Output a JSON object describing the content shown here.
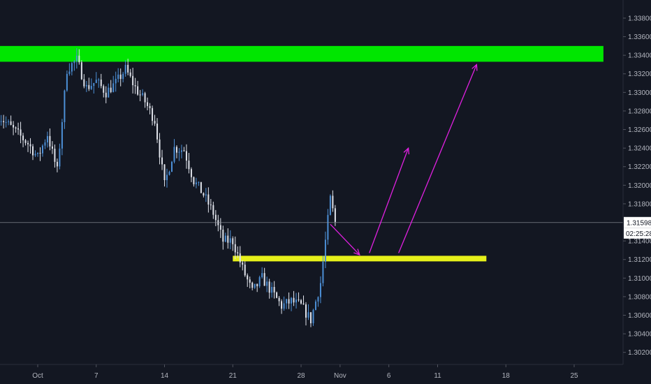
{
  "chart_data": {
    "type": "candlestick",
    "symbol": "",
    "colors": {
      "background": "#131722",
      "up": "#4c8fd6",
      "down": "#e0e3eb",
      "resistance_zone": "#00e600",
      "support_zone": "#e6f01a",
      "projection_arrows": "#e020e0",
      "axis_text": "#b2b5be",
      "price_line": "#9598a1"
    },
    "y_axis": {
      "ticks": [
        "1.33800",
        "1.33600",
        "1.33400",
        "1.33200",
        "1.33000",
        "1.32800",
        "1.32600",
        "1.32400",
        "1.32200",
        "1.32000",
        "1.31800",
        "1.31400",
        "1.31200",
        "1.31000",
        "1.30800",
        "1.30600",
        "1.30400",
        "1.30200"
      ],
      "range": [
        1.3013,
        1.3392
      ]
    },
    "x_axis": {
      "ticks": [
        "Oct",
        "7",
        "14",
        "21",
        "28",
        "Nov",
        "6",
        "11",
        "18",
        "25"
      ],
      "tick_dates": [
        "2019-10-01",
        "2019-10-07",
        "2019-10-14",
        "2019-10-21",
        "2019-10-28",
        "2019-11-01",
        "2019-11-06",
        "2019-11-11",
        "2019-11-18",
        "2019-11-25"
      ]
    },
    "current_price": {
      "value": "1.31598",
      "countdown": "02:25:28"
    },
    "zones": [
      {
        "kind": "resistance",
        "price_low": 1.3333,
        "price_high": 1.335,
        "date_from": "2019-09-27",
        "date_to": "2019-11-28"
      },
      {
        "kind": "support",
        "price_low": 1.3118,
        "price_high": 1.3124,
        "date_from": "2019-10-21",
        "date_to": "2019-11-16"
      }
    ],
    "projection": [
      {
        "from": [
          "2019-10-31",
          1.3158
        ],
        "to": [
          "2019-11-03",
          1.3125
        ]
      },
      {
        "from": [
          "2019-11-04",
          1.3127
        ],
        "to": [
          "2019-11-08",
          1.324
        ]
      },
      {
        "from": [
          "2019-11-07",
          1.3127
        ],
        "to": [
          "2019-11-15",
          1.333
        ]
      }
    ],
    "anchors": [
      [
        "2019-09-27",
        1.3275
      ],
      [
        "2019-09-30",
        1.3245
      ],
      [
        "2019-10-01",
        1.323
      ],
      [
        "2019-10-02",
        1.3255
      ],
      [
        "2019-10-03",
        1.3215
      ],
      [
        "2019-10-04",
        1.3325
      ],
      [
        "2019-10-05",
        1.3335
      ],
      [
        "2019-10-06",
        1.3305
      ],
      [
        "2019-10-07",
        1.3312
      ],
      [
        "2019-10-08",
        1.33
      ],
      [
        "2019-10-09",
        1.331
      ],
      [
        "2019-10-10",
        1.3325
      ],
      [
        "2019-10-11",
        1.3305
      ],
      [
        "2019-10-12",
        1.329
      ],
      [
        "2019-10-13",
        1.327
      ],
      [
        "2019-10-14",
        1.32
      ],
      [
        "2019-10-15",
        1.324
      ],
      [
        "2019-10-16",
        1.3238
      ],
      [
        "2019-10-17",
        1.3205
      ],
      [
        "2019-10-18",
        1.319
      ],
      [
        "2019-10-19",
        1.317
      ],
      [
        "2019-10-20",
        1.314
      ],
      [
        "2019-10-21",
        1.314
      ],
      [
        "2019-10-22",
        1.311
      ],
      [
        "2019-10-23",
        1.3085
      ],
      [
        "2019-10-24",
        1.31
      ],
      [
        "2019-10-25",
        1.3085
      ],
      [
        "2019-10-26",
        1.307
      ],
      [
        "2019-10-27",
        1.3075
      ],
      [
        "2019-10-28",
        1.307
      ],
      [
        "2019-10-29",
        1.3055
      ],
      [
        "2019-10-30",
        1.3095
      ],
      [
        "2019-10-31",
        1.3185
      ],
      [
        "2019-10-31T12:00",
        1.316
      ]
    ]
  }
}
